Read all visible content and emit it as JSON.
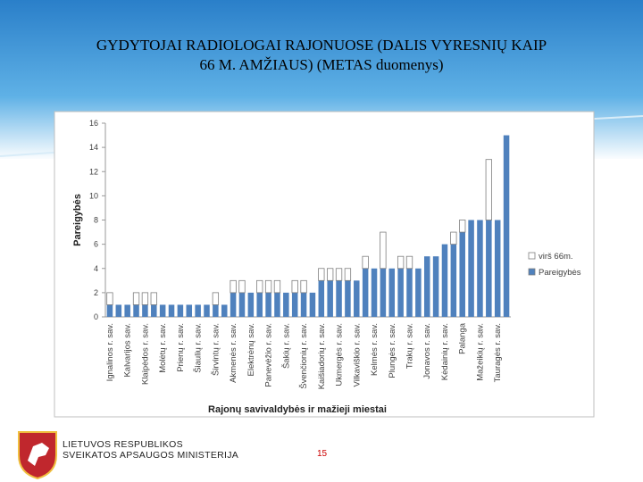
{
  "header": {
    "title": [
      "GYDYTOJAI RADIOLOGAI RAJONUOSE (DALIS VYRESNIŲ KAIP",
      "66 M. AMŽIAUS) (METAS duomenys)"
    ]
  },
  "chart_data": {
    "type": "stacked_bar",
    "categories": [
      "Ignalinos r. sav.",
      null,
      "Kalvarijos sav.",
      null,
      "Klaipėdos r. sav.",
      null,
      "Molėtų r. sav.",
      null,
      "Prienų r. sav.",
      null,
      "Šiaulių r. sav.",
      null,
      "Širvintų r. sav.",
      null,
      "Akmenės r. sav.",
      null,
      "Elektrėnų sav.",
      null,
      "Panevėžio r. sav.",
      null,
      "Šakių r. sav.",
      null,
      "Švenčionių r. sav.",
      null,
      "Kaišiadorių r. sav.",
      null,
      "Ukmergės r. sav.",
      null,
      "Vilkaviškio r. sav.",
      null,
      "Kelmės r. sav.",
      null,
      "Plungės r. sav.",
      null,
      "Trakų r. sav.",
      null,
      "Jonavos r. sav.",
      null,
      "Kėdainių r. sav.",
      null,
      "Palanga",
      null,
      "Mažeikių r. sav.",
      null,
      "Tauragės r. sav.",
      null
    ],
    "series": [
      {
        "name": "Pareigybės",
        "color": "#4f81bd",
        "values": [
          1,
          1,
          1,
          1,
          1,
          1,
          1,
          1,
          1,
          1,
          1,
          1,
          1,
          1,
          2,
          2,
          2,
          2,
          2,
          2,
          2,
          2,
          2,
          2,
          3,
          3,
          3,
          3,
          3,
          4,
          4,
          4,
          4,
          4,
          4,
          4,
          5,
          5,
          6,
          6,
          7,
          8,
          8,
          8,
          8,
          15
        ]
      },
      {
        "name": "virš 66m.",
        "color": "#ffffff",
        "values": [
          1,
          0,
          0,
          1,
          1,
          1,
          0,
          0,
          0,
          0,
          0,
          0,
          1,
          0,
          1,
          1,
          0,
          1,
          1,
          1,
          0,
          1,
          1,
          0,
          1,
          1,
          1,
          1,
          0,
          1,
          0,
          3,
          0,
          1,
          1,
          0,
          0,
          0,
          0,
          1,
          1,
          0,
          0,
          5,
          0,
          0
        ]
      }
    ],
    "ylabel": "Pareigybės",
    "xlabel": "Rajonų savivaldybės ir mažieji miestai",
    "ylim": [
      0,
      16
    ],
    "yticks": [
      0,
      2,
      4,
      6,
      8,
      10,
      12,
      14,
      16
    ],
    "legend": "right"
  },
  "footer": {
    "org": [
      "LIETUVOS RESPUBLIKOS",
      "SVEIKATOS APSAUGOS MINISTERIJA"
    ],
    "page": "15"
  }
}
